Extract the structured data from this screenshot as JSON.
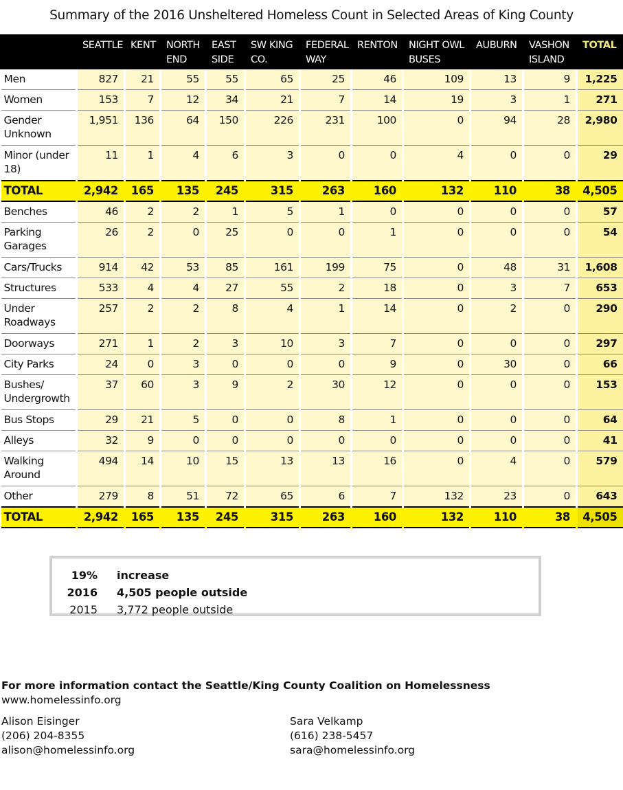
{
  "title": "Summary of the 2016 Unsheltered Homeless Count in Selected Areas of King County",
  "columns": [
    "SEATTLE",
    "KENT",
    "NORTH END",
    "EAST SIDE",
    "SW KING CO.",
    "FEDERAL WAY",
    "RENTON",
    "NIGHT OWL BUSES",
    "AUBURN",
    "VASHON ISLAND",
    "TOTAL"
  ],
  "rows": [
    {
      "label": "Men",
      "values": [
        "827",
        "21",
        "55",
        "55",
        "65",
        "25",
        "46",
        "109",
        "13",
        "9",
        "1,225"
      ]
    },
    {
      "label": "Women",
      "values": [
        "153",
        "7",
        "12",
        "34",
        "21",
        "7",
        "14",
        "19",
        "3",
        "1",
        "271"
      ]
    },
    {
      "label": "Gender Unknown",
      "values": [
        "1,951",
        "136",
        "64",
        "150",
        "226",
        "231",
        "100",
        "0",
        "94",
        "28",
        "2,980"
      ]
    },
    {
      "label": "Minor (under 18)",
      "values": [
        "11",
        "1",
        "4",
        "6",
        "3",
        "0",
        "0",
        "4",
        "0",
        "0",
        "29"
      ]
    },
    {
      "label": "TOTAL",
      "total": true,
      "values": [
        "2,942",
        "165",
        "135",
        "245",
        "315",
        "263",
        "160",
        "132",
        "110",
        "38",
        "4,505"
      ]
    },
    {
      "label": "Benches",
      "values": [
        "46",
        "2",
        "2",
        "1",
        "5",
        "1",
        "0",
        "0",
        "0",
        "0",
        "57"
      ]
    },
    {
      "label": "Parking Garages",
      "values": [
        "26",
        "2",
        "0",
        "25",
        "0",
        "0",
        "1",
        "0",
        "0",
        "0",
        "54"
      ]
    },
    {
      "label": "Cars/Trucks",
      "values": [
        "914",
        "42",
        "53",
        "85",
        "161",
        "199",
        "75",
        "0",
        "48",
        "31",
        "1,608"
      ]
    },
    {
      "label": "Structures",
      "values": [
        "533",
        "4",
        "4",
        "27",
        "55",
        "2",
        "18",
        "0",
        "3",
        "7",
        "653"
      ]
    },
    {
      "label": "Under Roadways",
      "values": [
        "257",
        "2",
        "2",
        "8",
        "4",
        "1",
        "14",
        "0",
        "2",
        "0",
        "290"
      ]
    },
    {
      "label": "Doorways",
      "values": [
        "271",
        "1",
        "2",
        "3",
        "10",
        "3",
        "7",
        "0",
        "0",
        "0",
        "297"
      ]
    },
    {
      "label": "City Parks",
      "values": [
        "24",
        "0",
        "3",
        "0",
        "0",
        "0",
        "9",
        "0",
        "30",
        "0",
        "66"
      ]
    },
    {
      "label": "Bushes/ Undergrowth",
      "values": [
        "37",
        "60",
        "3",
        "9",
        "2",
        "30",
        "12",
        "0",
        "0",
        "0",
        "153"
      ]
    },
    {
      "label": "Bus Stops",
      "values": [
        "29",
        "21",
        "5",
        "0",
        "0",
        "8",
        "1",
        "0",
        "0",
        "0",
        "64"
      ]
    },
    {
      "label": "Alleys",
      "values": [
        "32",
        "9",
        "0",
        "0",
        "0",
        "0",
        "0",
        "0",
        "0",
        "0",
        "41"
      ]
    },
    {
      "label": "Walking Around",
      "values": [
        "494",
        "14",
        "10",
        "15",
        "13",
        "13",
        "16",
        "0",
        "4",
        "0",
        "579"
      ]
    },
    {
      "label": "Other",
      "values": [
        "279",
        "8",
        "51",
        "72",
        "65",
        "6",
        "7",
        "132",
        "23",
        "0",
        "643"
      ]
    },
    {
      "label": "TOTAL",
      "total": true,
      "values": [
        "2,942",
        "165",
        "135",
        "245",
        "315",
        "263",
        "160",
        "132",
        "110",
        "38",
        "4,505"
      ]
    }
  ],
  "summary": [
    {
      "a": "19%",
      "b": "increase",
      "bold": true
    },
    {
      "a": "2016",
      "b": "4,505 people outside",
      "bold": true
    },
    {
      "a": "2015",
      "b": "3,772 people outside",
      "bold": false
    }
  ],
  "contact": {
    "heading": "For more information contact the Seattle/King County Coalition on Homelessness",
    "website": "www.homelessinfo.org",
    "people": [
      {
        "name": "Alison Eisinger",
        "phone": "(206) 204-8355",
        "email": "alison@homelessinfo.org"
      },
      {
        "name": "Sara Velkamp",
        "phone": "(616) 238-5457",
        "email": "sara@homelessinfo.org"
      }
    ]
  },
  "colors": {
    "header_bg": "#000000",
    "cell_bg": "#fff8cc",
    "total_col_bg": "#fdf2a0",
    "total_row_bg": "#fff200"
  }
}
